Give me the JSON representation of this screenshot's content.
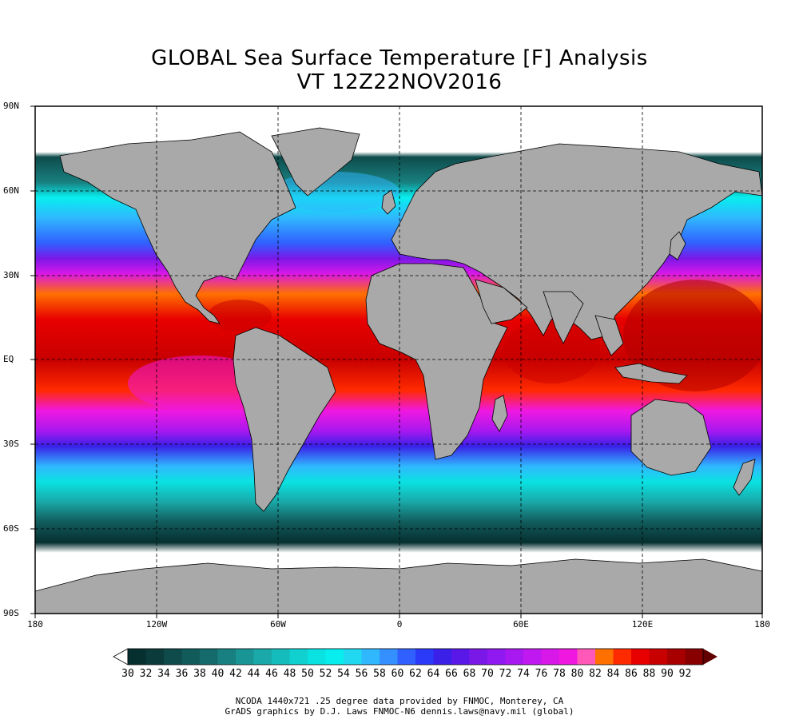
{
  "title": {
    "line1": "GLOBAL Sea Surface Temperature [F] Analysis",
    "line2": "VT 12Z22NOV2016"
  },
  "latitude_labels": [
    "90N",
    "60N",
    "30N",
    "EQ",
    "30S",
    "60S",
    "90S"
  ],
  "longitude_labels": [
    "180",
    "120W",
    "60W",
    "0",
    "60E",
    "120E",
    "180"
  ],
  "colorbar": {
    "ticks": [
      "30",
      "32",
      "34",
      "36",
      "38",
      "40",
      "42",
      "44",
      "46",
      "48",
      "50",
      "52",
      "54",
      "56",
      "58",
      "60",
      "62",
      "64",
      "66",
      "68",
      "70",
      "72",
      "74",
      "76",
      "78",
      "80",
      "82",
      "84",
      "86",
      "88",
      "90",
      "92"
    ],
    "colors": [
      "#062f2f",
      "#0b3b3b",
      "#0f4b4b",
      "#125b5b",
      "#156b6b",
      "#188080",
      "#1a9595",
      "#1aa8a8",
      "#15bcbc",
      "#10d0d0",
      "#0ae2e2",
      "#08eeee",
      "#20d8f0",
      "#30b8ff",
      "#3590ff",
      "#3060ff",
      "#2a3af8",
      "#3a20e8",
      "#5a18e8",
      "#7a18e8",
      "#9018f0",
      "#a818f0",
      "#c018f0",
      "#d818e8",
      "#f018e0",
      "#ff58b8",
      "#ff7000",
      "#ff2a00",
      "#e80000",
      "#c80000",
      "#a80000",
      "#880000",
      "#600000"
    ]
  },
  "credits": {
    "line1": "NCODA 1440x721 .25 degree data provided by FNMOC, Monterey, CA",
    "line2": "GrADS graphics by D.J. Laws FNMOC-N6 dennis.laws@navy.mil (global)"
  },
  "land_color": "#a9a9a9",
  "ice_color": "#ffffff",
  "grid_style": "dashed"
}
